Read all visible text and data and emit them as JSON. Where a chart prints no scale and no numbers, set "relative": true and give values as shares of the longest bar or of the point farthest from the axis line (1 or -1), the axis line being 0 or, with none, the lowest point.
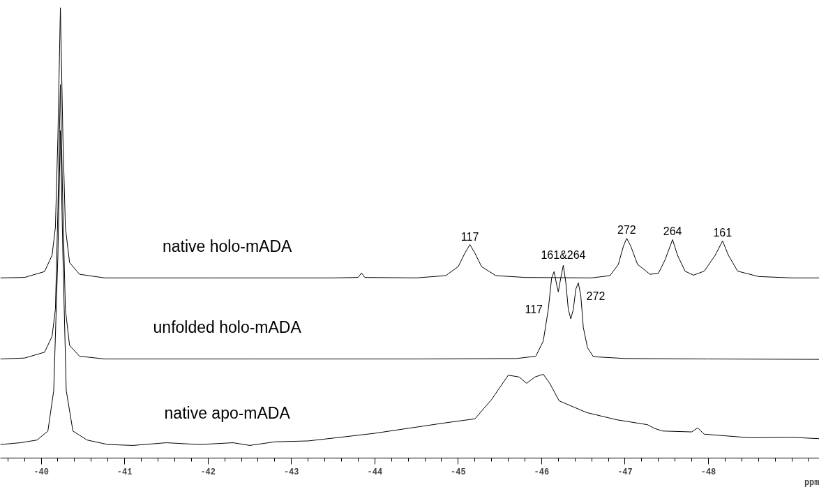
{
  "chart_data": {
    "type": "line",
    "relative": true,
    "xlabel": "ppm",
    "xlim": [
      -39.51,
      -49.33
    ],
    "xticks": [
      -40,
      -41,
      -42,
      -43,
      -44,
      -45,
      -46,
      -47,
      -48
    ],
    "grid": false,
    "marker": "none",
    "line_style": "solid",
    "series": [
      {
        "name": "native holo-mADA",
        "color": "#000000",
        "x": [
          -39.51,
          -39.8,
          -40.04,
          -40.13,
          -40.17,
          -40.2,
          -40.23,
          -40.26,
          -40.29,
          -40.34,
          -40.46,
          -40.76,
          -42.0,
          -43.5,
          -43.8,
          -43.84,
          -43.88,
          -44.5,
          -44.85,
          -45.0,
          -45.08,
          -45.14,
          -45.2,
          -45.28,
          -45.45,
          -45.8,
          -46.6,
          -46.82,
          -46.92,
          -46.98,
          -47.02,
          -47.07,
          -47.15,
          -47.3,
          -47.4,
          -47.48,
          -47.57,
          -47.63,
          -47.72,
          -47.82,
          -47.95,
          -48.08,
          -48.17,
          -48.24,
          -48.35,
          -48.6,
          -49.0,
          -49.33
        ],
        "values": [
          0.4,
          0.401,
          0.414,
          0.45,
          0.512,
          0.713,
          1.0,
          0.713,
          0.512,
          0.434,
          0.408,
          0.4,
          0.4,
          0.4,
          0.401,
          0.411,
          0.401,
          0.4,
          0.405,
          0.425,
          0.455,
          0.474,
          0.455,
          0.425,
          0.405,
          0.401,
          0.4,
          0.405,
          0.43,
          0.47,
          0.488,
          0.47,
          0.43,
          0.408,
          0.41,
          0.44,
          0.485,
          0.45,
          0.415,
          0.406,
          0.415,
          0.45,
          0.482,
          0.45,
          0.415,
          0.403,
          0.4,
          0.4
        ]
      },
      {
        "name": "unfolded holo-mADA",
        "color": "#000000",
        "x": [
          -39.51,
          -39.8,
          -40.04,
          -40.13,
          -40.17,
          -40.2,
          -40.23,
          -40.26,
          -40.29,
          -40.34,
          -40.46,
          -40.76,
          -42.5,
          -44.5,
          -45.7,
          -45.93,
          -46.02,
          -46.08,
          -46.12,
          -46.15,
          -46.18,
          -46.2,
          -46.23,
          -46.26,
          -46.29,
          -46.32,
          -46.35,
          -46.38,
          -46.41,
          -46.44,
          -46.47,
          -46.5,
          -46.55,
          -46.62,
          -47.0,
          -48.0,
          -49.33
        ],
        "values": [
          0.22,
          0.222,
          0.235,
          0.27,
          0.33,
          0.55,
          0.829,
          0.55,
          0.33,
          0.25,
          0.226,
          0.22,
          0.22,
          0.22,
          0.221,
          0.226,
          0.26,
          0.33,
          0.4,
          0.414,
          0.385,
          0.369,
          0.4,
          0.428,
          0.39,
          0.33,
          0.309,
          0.33,
          0.375,
          0.389,
          0.36,
          0.29,
          0.245,
          0.225,
          0.221,
          0.22,
          0.219
        ]
      },
      {
        "name": "native apo-mADA",
        "color": "#000000",
        "x": [
          -39.51,
          -39.75,
          -39.95,
          -40.08,
          -40.15,
          -40.2,
          -40.23,
          -40.26,
          -40.3,
          -40.38,
          -40.55,
          -40.8,
          -41.1,
          -41.5,
          -41.9,
          -42.3,
          -42.5,
          -42.8,
          -43.2,
          -43.63,
          -44.0,
          -44.4,
          -44.84,
          -45.2,
          -45.4,
          -45.6,
          -45.73,
          -45.82,
          -45.92,
          -46.02,
          -46.1,
          -46.21,
          -46.54,
          -46.9,
          -47.27,
          -47.35,
          -47.45,
          -47.8,
          -47.87,
          -47.95,
          -48.5,
          -49.0,
          -49.33
        ],
        "values": [
          0.03,
          0.034,
          0.04,
          0.06,
          0.15,
          0.45,
          0.727,
          0.45,
          0.15,
          0.06,
          0.04,
          0.03,
          0.028,
          0.034,
          0.03,
          0.034,
          0.028,
          0.036,
          0.038,
          0.047,
          0.055,
          0.066,
          0.078,
          0.087,
          0.13,
          0.184,
          0.18,
          0.166,
          0.18,
          0.186,
          0.165,
          0.127,
          0.101,
          0.085,
          0.074,
          0.066,
          0.06,
          0.058,
          0.067,
          0.053,
          0.045,
          0.046,
          0.043
        ]
      }
    ],
    "annotations": [
      {
        "text": "117",
        "x": -45.14,
        "y": 0.474
      },
      {
        "text": "272",
        "x": -47.02,
        "y": 0.488
      },
      {
        "text": "264",
        "x": -47.57,
        "y": 0.485
      },
      {
        "text": "161",
        "x": -48.17,
        "y": 0.482
      },
      {
        "text": "161&264",
        "x": -46.26,
        "y": 0.428
      },
      {
        "text": "117",
        "x": -46.08,
        "y": 0.33
      },
      {
        "text": "272",
        "x": -46.47,
        "y": 0.36
      }
    ]
  }
}
